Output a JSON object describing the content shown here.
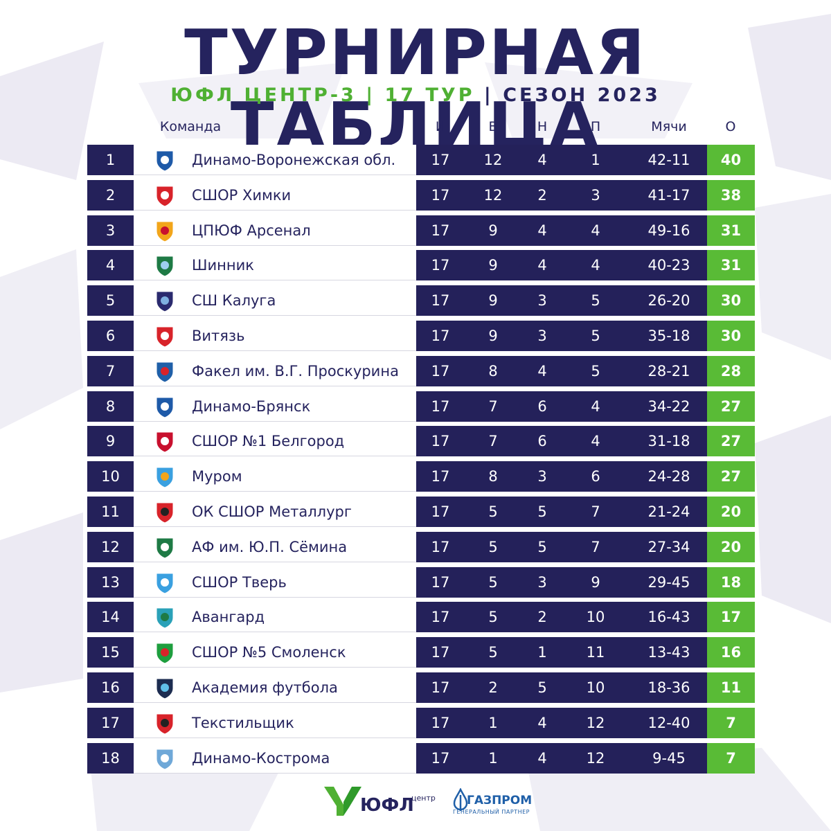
{
  "title": "ТУРНИРНАЯ ТАБЛИЦА",
  "subtitle": {
    "league": "ЮФЛ ЦЕНТР-3",
    "sep1": " | ",
    "round": "17 ТУР",
    "sep2": " | ",
    "season": "СЕЗОН 2023"
  },
  "headers": {
    "team": "Команда",
    "played": "И",
    "won": "В",
    "drawn": "Н",
    "lost": "П",
    "goals": "Мячи",
    "points": "О"
  },
  "rows": [
    {
      "pos": "1",
      "team": "Динамо-Воронежская обл.",
      "p": "17",
      "w": "12",
      "d": "4",
      "l": "1",
      "g": "42-11",
      "pts": "40"
    },
    {
      "pos": "2",
      "team": "СШОР Химки",
      "p": "17",
      "w": "12",
      "d": "2",
      "l": "3",
      "g": "41-17",
      "pts": "38"
    },
    {
      "pos": "3",
      "team": "ЦПЮФ Арсенал",
      "p": "17",
      "w": "9",
      "d": "4",
      "l": "4",
      "g": "49-16",
      "pts": "31"
    },
    {
      "pos": "4",
      "team": "Шинник",
      "p": "17",
      "w": "9",
      "d": "4",
      "l": "4",
      "g": "40-23",
      "pts": "31"
    },
    {
      "pos": "5",
      "team": "СШ Калуга",
      "p": "17",
      "w": "9",
      "d": "3",
      "l": "5",
      "g": "26-20",
      "pts": "30"
    },
    {
      "pos": "6",
      "team": "Витязь",
      "p": "17",
      "w": "9",
      "d": "3",
      "l": "5",
      "g": "35-18",
      "pts": "30"
    },
    {
      "pos": "7",
      "team": "Факел им. В.Г. Проскурина",
      "p": "17",
      "w": "8",
      "d": "4",
      "l": "5",
      "g": "28-21",
      "pts": "28"
    },
    {
      "pos": "8",
      "team": "Динамо-Брянск",
      "p": "17",
      "w": "7",
      "d": "6",
      "l": "4",
      "g": "34-22",
      "pts": "27"
    },
    {
      "pos": "9",
      "team": "СШОР №1 Белгород",
      "p": "17",
      "w": "7",
      "d": "6",
      "l": "4",
      "g": "31-18",
      "pts": "27"
    },
    {
      "pos": "10",
      "team": "Муром",
      "p": "17",
      "w": "8",
      "d": "3",
      "l": "6",
      "g": "24-28",
      "pts": "27"
    },
    {
      "pos": "11",
      "team": "ОК СШОР Металлург",
      "p": "17",
      "w": "5",
      "d": "5",
      "l": "7",
      "g": "21-24",
      "pts": "20"
    },
    {
      "pos": "12",
      "team": "АФ им. Ю.П. Сёмина",
      "p": "17",
      "w": "5",
      "d": "5",
      "l": "7",
      "g": "27-34",
      "pts": "20"
    },
    {
      "pos": "13",
      "team": "СШОР Тверь",
      "p": "17",
      "w": "5",
      "d": "3",
      "l": "9",
      "g": "29-45",
      "pts": "18"
    },
    {
      "pos": "14",
      "team": "Авангард",
      "p": "17",
      "w": "5",
      "d": "2",
      "l": "10",
      "g": "16-43",
      "pts": "17"
    },
    {
      "pos": "15",
      "team": "СШОР №5 Смоленск",
      "p": "17",
      "w": "5",
      "d": "1",
      "l": "11",
      "g": "13-43",
      "pts": "16"
    },
    {
      "pos": "16",
      "team": "Академия футбола",
      "p": "17",
      "w": "2",
      "d": "5",
      "l": "10",
      "g": "18-36",
      "pts": "11"
    },
    {
      "pos": "17",
      "team": "Текстильщик",
      "p": "17",
      "w": "1",
      "d": "4",
      "l": "12",
      "g": "12-40",
      "pts": "7"
    },
    {
      "pos": "18",
      "team": "Динамо-Кострома",
      "p": "17",
      "w": "1",
      "d": "4",
      "l": "12",
      "g": "9-45",
      "pts": "7"
    }
  ],
  "footer": {
    "yufl": "ЮФЛ",
    "yufl_sub": "центр",
    "gazprom": "ГАЗПРОМ",
    "gazprom_sub": "ГЕНЕРАЛЬНЫЙ ПАРТНЕР"
  },
  "colors": {
    "navy": "#24215a",
    "green": "#59bb36",
    "subtitle_green": "#4fb033",
    "background_shapes": "#e9e8f2"
  },
  "icons": [
    "team-crest-icon",
    "yufl-logo-icon",
    "gazprom-logo-icon"
  ]
}
